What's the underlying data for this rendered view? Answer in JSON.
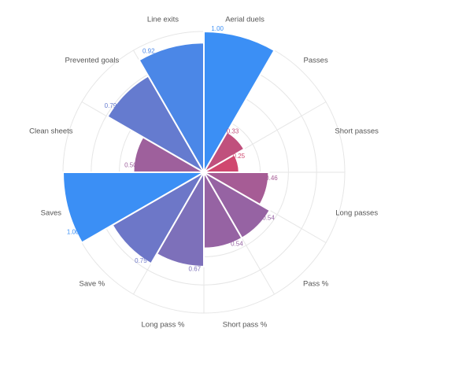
{
  "chart_data": {
    "type": "polar-area",
    "title": "",
    "legend": "none",
    "grid": true,
    "rlim": [
      0,
      1
    ],
    "categories": [
      "Aerial duels",
      "Passes",
      "Short passes",
      "Long passes",
      "Pass %",
      "Short pass %",
      "Long pass %",
      "Save %",
      "Saves",
      "Clean sheets",
      "Prevented goals",
      "Line exits"
    ],
    "values": [
      1.0,
      0.33,
      0.25,
      0.46,
      0.54,
      0.54,
      0.67,
      0.75,
      1.0,
      0.5,
      0.79,
      0.92
    ],
    "value_labels": [
      "1.00",
      "0.33",
      "0.25",
      "0.46",
      "0.54",
      "0.54",
      "0.67",
      "0.75",
      "1.00",
      "0.50",
      "0.79",
      "0.92"
    ],
    "colors": {
      "high": "#3b8ff5",
      "low": "#d0486f"
    }
  }
}
